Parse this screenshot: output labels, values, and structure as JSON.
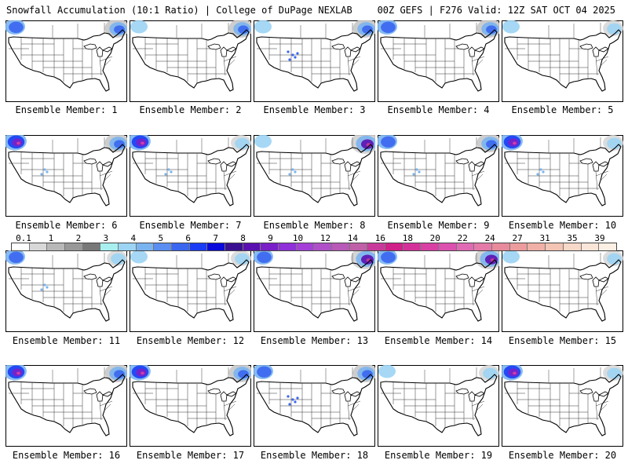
{
  "header": {
    "left": "Snowfall Accumulation (10:1 Ratio) | College of DuPage NEXLAB",
    "right": "00Z GEFS | F276 Valid: 12Z SAT OCT 04 2025"
  },
  "members": [
    {
      "caption": "Ensemble Member: 1",
      "sw": 2,
      "ne": 2,
      "rockies": 0
    },
    {
      "caption": "Ensemble Member: 2",
      "sw": 1,
      "ne": 2,
      "rockies": 0
    },
    {
      "caption": "Ensemble Member: 3",
      "sw": 1,
      "ne": 2,
      "rockies": 2
    },
    {
      "caption": "Ensemble Member: 4",
      "sw": 2,
      "ne": 2,
      "rockies": 0
    },
    {
      "caption": "Ensemble Member: 5",
      "sw": 1,
      "ne": 1,
      "rockies": 0
    },
    {
      "caption": "Ensemble Member: 6",
      "sw": 3,
      "ne": 2,
      "rockies": 1
    },
    {
      "caption": "Ensemble Member: 7",
      "sw": 3,
      "ne": 1,
      "rockies": 1
    },
    {
      "caption": "Ensemble Member: 8",
      "sw": 1,
      "ne": 3,
      "rockies": 1
    },
    {
      "caption": "Ensemble Member: 9",
      "sw": 2,
      "ne": 2,
      "rockies": 1
    },
    {
      "caption": "Ensemble Member: 10",
      "sw": 3,
      "ne": 1,
      "rockies": 1
    },
    {
      "caption": "Ensemble Member: 11",
      "sw": 2,
      "ne": 1,
      "rockies": 1
    },
    {
      "caption": "Ensemble Member: 12",
      "sw": 1,
      "ne": 1,
      "rockies": 0
    },
    {
      "caption": "Ensemble Member: 13",
      "sw": 2,
      "ne": 3,
      "rockies": 0
    },
    {
      "caption": "Ensemble Member: 14",
      "sw": 2,
      "ne": 3,
      "rockies": 0
    },
    {
      "caption": "Ensemble Member: 15",
      "sw": 1,
      "ne": 1,
      "rockies": 0
    },
    {
      "caption": "Ensemble Member: 16",
      "sw": 3,
      "ne": 2,
      "rockies": 0
    },
    {
      "caption": "Ensemble Member: 17",
      "sw": 3,
      "ne": 2,
      "rockies": 0
    },
    {
      "caption": "Ensemble Member: 18",
      "sw": 2,
      "ne": 2,
      "rockies": 2
    },
    {
      "caption": "Ensemble Member: 19",
      "sw": 1,
      "ne": 1,
      "rockies": 0
    },
    {
      "caption": "Ensemble Member: 20",
      "sw": 3,
      "ne": 1,
      "rockies": 0
    }
  ],
  "legend": {
    "labels": [
      "0.1",
      "1",
      "2",
      "3",
      "4",
      "5",
      "6",
      "7",
      "8",
      "9",
      "10",
      "12",
      "14",
      "16",
      "18",
      "20",
      "22",
      "24",
      "27",
      "31",
      "35",
      "39"
    ],
    "colors": [
      "#ffffff",
      "#d8d8d8",
      "#b8b8b8",
      "#989898",
      "#787878",
      "#a8f0f0",
      "#9cd4f4",
      "#7ab4f0",
      "#5a8ef0",
      "#3a66f0",
      "#1a3cf4",
      "#0a0adc",
      "#3a1090",
      "#5a10b0",
      "#7a20c8",
      "#9030d8",
      "#a440d8",
      "#b050c8",
      "#b85ab8",
      "#c060a8",
      "#c83a9a",
      "#d0208a",
      "#d4309a",
      "#d840a4",
      "#dc50b0",
      "#e06ab4",
      "#e47aa8",
      "#e88a9c",
      "#ec9c9c",
      "#f0b0a8",
      "#f4c4b4",
      "#f8d8c8",
      "#fae6d8",
      "#fcefe4"
    ]
  }
}
